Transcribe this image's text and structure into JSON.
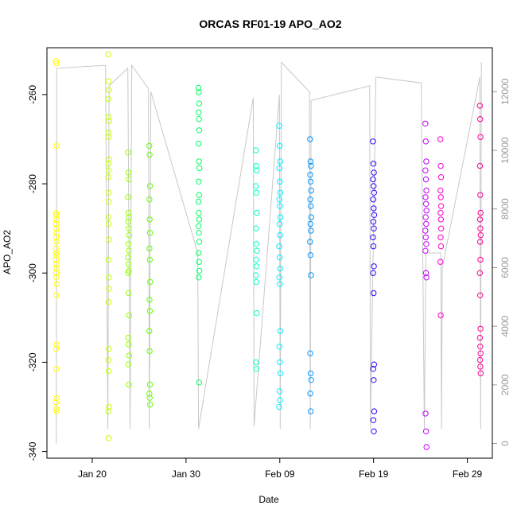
{
  "chart_data": {
    "type": "scatter",
    "title": "ORCAS RF01-19 APO_AO2",
    "xlabel": "Date",
    "ylabel": "APO_AO2",
    "x_axis_type": "date",
    "xlim": [
      "2016-01-15T04:00:00Z",
      "2016-03-02T16:00:00Z"
    ],
    "ylim": [
      -341.5,
      -249.5
    ],
    "y_ticks": [
      -260,
      -280,
      -300,
      -320,
      -340
    ],
    "y_tick_labels": [
      "-260",
      "-280",
      "-300",
      "-320",
      "-340"
    ],
    "x_ticks": [
      "2016-01-20T00:00:00Z",
      "2016-01-30T00:00:00Z",
      "2016-02-09T00:00:00Z",
      "2016-02-19T00:00:00Z",
      "2016-02-29T00:00:00Z"
    ],
    "x_tick_labels": [
      "Jan 20",
      "Jan 30",
      "Feb 09",
      "Feb 19",
      "Feb 29"
    ],
    "y2_ticks": [
      0,
      2000,
      4000,
      6000,
      8000,
      10000,
      12000
    ],
    "y2_tick_labels": [
      "0",
      "2000",
      "4000",
      "6000",
      "8000",
      "10000",
      "12000"
    ],
    "y2_lim": [
      -500,
      13500
    ],
    "grid": false,
    "line_series": {
      "color": "#c8c8c8",
      "points": [
        [
          "2016-01-16T04:00:00Z",
          0
        ],
        [
          "2016-01-16T05:00:00Z",
          12800
        ],
        [
          "2016-01-21T10:00:00Z",
          12900
        ],
        [
          "2016-01-21T16:00:00Z",
          500
        ],
        [
          "2016-01-21T19:00:00Z",
          12200
        ],
        [
          "2016-01-23T19:00:00Z",
          12800
        ],
        [
          "2016-01-24T01:00:00Z",
          500
        ],
        [
          "2016-01-24T05:00:00Z",
          12900
        ],
        [
          "2016-01-26T00:00:00Z",
          12100
        ],
        [
          "2016-01-26T02:00:00Z",
          500
        ],
        [
          "2016-01-26T06:00:00Z",
          12000
        ],
        [
          "2016-01-31T06:00:00Z",
          6500
        ],
        [
          "2016-01-31T08:00:00Z",
          500
        ],
        [
          "2016-02-06T04:00:00Z",
          11800
        ],
        [
          "2016-02-06T06:00:00Z",
          600
        ],
        [
          "2016-02-08T23:00:00Z",
          11900
        ],
        [
          "2016-02-09T01:00:00Z",
          500
        ],
        [
          "2016-02-09T04:00:00Z",
          13000
        ],
        [
          "2016-02-12T04:00:00Z",
          12000
        ],
        [
          "2016-02-12T06:00:00Z",
          500
        ],
        [
          "2016-02-12T08:00:00Z",
          11700
        ],
        [
          "2016-02-18T14:00:00Z",
          12200
        ],
        [
          "2016-02-18T16:00:00Z",
          500
        ],
        [
          "2016-02-19T06:00:00Z",
          12500
        ],
        [
          "2016-02-24T02:00:00Z",
          12300
        ],
        [
          "2016-02-24T10:00:00Z",
          500
        ],
        [
          "2016-02-24T14:00:00Z",
          6500
        ],
        [
          "2016-02-26T04:00:00Z",
          6500
        ],
        [
          "2016-02-26T06:00:00Z",
          500
        ],
        [
          "2016-02-26T08:00:00Z",
          6000
        ],
        [
          "2016-03-01T08:00:00Z",
          12500
        ],
        [
          "2016-03-01T10:00:00Z",
          500
        ],
        [
          "2016-03-01T12:00:00Z",
          13000
        ]
      ]
    },
    "series": [
      {
        "color": "#ffff00",
        "x": "2016-01-16T04:00:00Z",
        "x_spread_hours": 2,
        "values": [
          -252.5,
          -253.0,
          -271.5,
          -286.5,
          -287.0,
          -288.0,
          -289.0,
          -290.0,
          -291.0,
          -292.0,
          -293.0,
          -294.5,
          -295.5,
          -296.0,
          -297.0,
          -298.0,
          -299.0,
          -300.0,
          -301.0,
          -302.5,
          -305.0,
          -316.0,
          -317.0,
          -321.5,
          -328.0,
          -329.0,
          -330.5,
          -331.0
        ]
      },
      {
        "color": "#c8ff00",
        "x": "2016-01-21T18:00:00Z",
        "x_spread_hours": 2,
        "values": [
          -251.0,
          -257.0,
          -259.0,
          -261.0,
          -265.0,
          -266.0,
          -268.5,
          -269.5,
          -274.5,
          -275.5,
          -277.0,
          -278.5,
          -282.0,
          -284.0,
          -287.5,
          -289.0,
          -292.5,
          -297.0,
          -301.0,
          -303.5,
          -306.5,
          -317.0,
          -319.5,
          -322.0,
          -330.0,
          -331.0,
          -337.0
        ]
      },
      {
        "color": "#96ff00",
        "x": "2016-01-23T21:00:00Z",
        "x_spread_hours": 3,
        "values": [
          -273.0,
          -277.5,
          -279.0,
          -283.0,
          -286.5,
          -287.5,
          -288.5,
          -290.0,
          -291.5,
          -293.5,
          -295.0,
          -296.5,
          -298.0,
          -299.5,
          -300.0,
          -304.5,
          -309.5,
          -314.5,
          -316.0,
          -318.5,
          -320.5,
          -325.0
        ]
      },
      {
        "color": "#64ff00",
        "x": "2016-01-26T03:00:00Z",
        "x_spread_hours": 2,
        "values": [
          -271.5,
          -273.5,
          -280.5,
          -283.5,
          -288.0,
          -291.0,
          -294.5,
          -297.0,
          -302.0,
          -306.0,
          -308.5,
          -313.0,
          -317.5,
          -325.0,
          -327.0,
          -328.0,
          -329.5
        ]
      },
      {
        "color": "#00ff64",
        "x": "2016-01-31T09:00:00Z",
        "x_spread_hours": 2,
        "values": [
          -258.5,
          -259.5,
          -262.0,
          -264.0,
          -265.5,
          -268.0,
          -271.0,
          -275.0,
          -276.5,
          -279.5,
          -282.5,
          -284.0,
          -286.5,
          -288.0,
          -289.5,
          -291.0,
          -293.0,
          -295.5,
          -297.5,
          -299.5,
          -301.0,
          -324.5
        ]
      },
      {
        "color": "#00ffc8",
        "x": "2016-02-06T12:00:00Z",
        "x_spread_hours": 3,
        "values": [
          -272.5,
          -276.0,
          -277.0,
          -280.5,
          -282.0,
          -286.5,
          -290.0,
          -293.5,
          -295.0,
          -297.0,
          -298.5,
          -300.5,
          -302.0,
          -309.0,
          -320.0,
          -321.5
        ]
      },
      {
        "color": "#00f0ff",
        "x": "2016-02-09T00:00:00Z",
        "x_spread_hours": 3,
        "values": [
          -267.0,
          -271.5,
          -275.0,
          -276.5,
          -279.5,
          -282.0,
          -283.5,
          -285.0,
          -287.5,
          -289.0,
          -291.5,
          -294.0,
          -296.5,
          -299.0,
          -301.0,
          -302.5,
          -313.0,
          -316.5,
          -320.0,
          -322.5,
          -326.5,
          -328.5,
          -330.0
        ]
      },
      {
        "color": "#0096ff",
        "x": "2016-02-12T07:00:00Z",
        "x_spread_hours": 3,
        "values": [
          -270.0,
          -275.0,
          -276.0,
          -278.0,
          -279.5,
          -281.5,
          -283.5,
          -285.0,
          -287.5,
          -289.0,
          -290.5,
          -293.0,
          -296.0,
          -300.5,
          -318.0,
          -322.5,
          -324.0,
          -327.0,
          -331.0
        ]
      },
      {
        "color": "#3200ff",
        "x": "2016-02-19T00:00:00Z",
        "x_spread_hours": 3,
        "values": [
          -270.5,
          -275.5,
          -277.5,
          -279.0,
          -280.5,
          -282.0,
          -283.5,
          -285.5,
          -287.0,
          -288.5,
          -290.0,
          -292.0,
          -294.0,
          -298.5,
          -300.0,
          -304.5,
          -320.5,
          -321.5,
          -324.0,
          -331.0,
          -333.0,
          -335.5
        ]
      },
      {
        "color": "#c800ff",
        "x": "2016-02-24T14:00:00Z",
        "x_spread_hours": 3,
        "values": [
          -266.5,
          -270.5,
          -275.0,
          -277.0,
          -279.0,
          -281.5,
          -283.0,
          -284.5,
          -286.0,
          -287.5,
          -289.0,
          -290.5,
          -292.0,
          -293.5,
          -295.0,
          -300.0,
          -301.0,
          -331.5,
          -335.5,
          -339.0
        ]
      },
      {
        "color": "#ff00c8",
        "x": "2016-02-26T04:00:00Z",
        "x_spread_hours": 2,
        "values": [
          -270.0,
          -276.0,
          -278.5,
          -281.5,
          -283.0,
          -285.0,
          -286.5,
          -288.0,
          -290.0,
          -292.0,
          -294.0,
          -297.5,
          -309.5
        ]
      },
      {
        "color": "#ff0096",
        "x": "2016-03-01T09:00:00Z",
        "x_spread_hours": 2,
        "values": [
          -262.5,
          -265.5,
          -269.5,
          -276.0,
          -282.5,
          -286.5,
          -288.0,
          -290.0,
          -291.5,
          -293.0,
          -297.0,
          -300.0,
          -305.0,
          -312.5,
          -314.5,
          -316.5,
          -318.0,
          -319.5,
          -321.0,
          -322.5
        ]
      }
    ]
  }
}
